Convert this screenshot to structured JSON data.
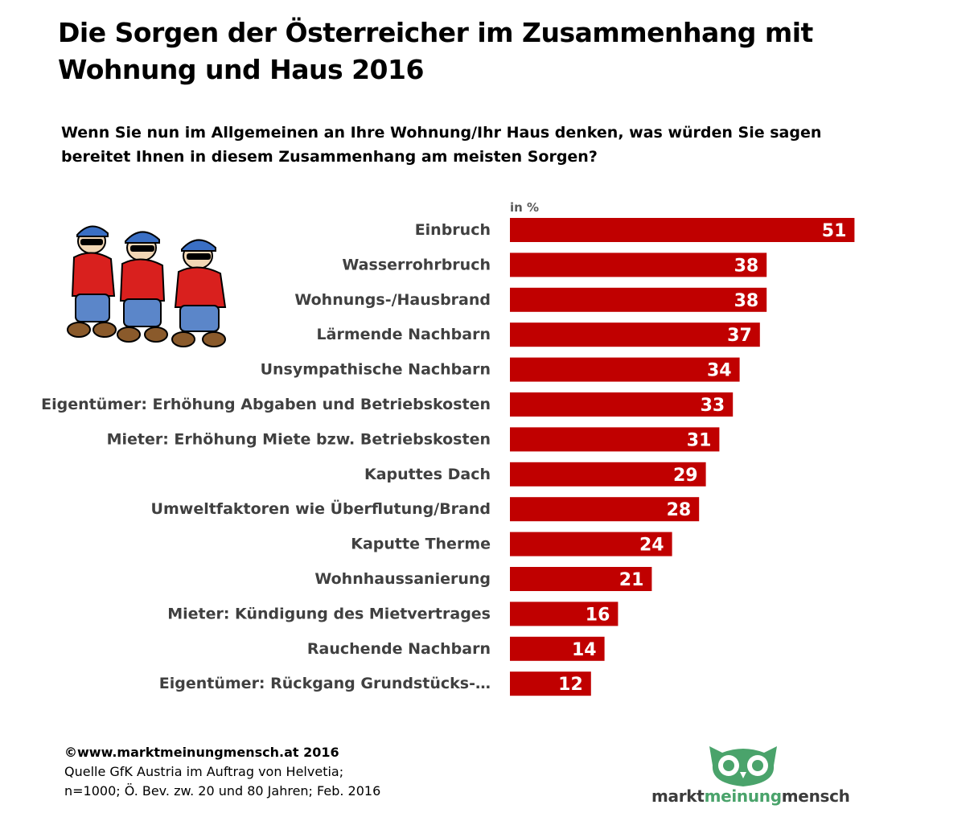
{
  "title": {
    "line1": "Die Sorgen der Österreicher im Zusammenhang mit",
    "line2": "Wohnung und Haus 2016"
  },
  "question": {
    "line1": "Wenn Sie nun im Allgemeinen an Ihre Wohnung/Ihr Haus denken, was würden Sie sagen",
    "line2": "bereitet Ihnen in diesem Zusammenhang  am meisten Sorgen?"
  },
  "unit_label": "in %",
  "chart_data": {
    "type": "bar",
    "orientation": "horizontal",
    "categories": [
      "Einbruch",
      "Wasserrohrbruch",
      "Wohnungs-/Hausbrand",
      "Lärmende Nachbarn",
      "Unsympathische Nachbarn",
      "Eigentümer: Erhöhung Abgaben und Betriebskosten",
      "Mieter: Erhöhung Miete bzw. Betriebskosten",
      "Kaputtes Dach",
      "Umweltfaktoren wie Überflutung/Brand",
      "Kaputte Therme",
      "Wohnhaussanierung",
      "Mieter: Kündigung des Mietvertrages",
      "Rauchende Nachbarn",
      "Eigentümer: Rückgang Grundstücks-…"
    ],
    "values": [
      51,
      38,
      38,
      37,
      34,
      33,
      31,
      29,
      28,
      24,
      21,
      16,
      14,
      12
    ],
    "xlim": [
      0,
      60
    ],
    "grid": false,
    "data_labels": true,
    "bar_color": "#c00000",
    "label_color": "#404040",
    "value_label_color": "#ffffff"
  },
  "footer": {
    "copyright": "©www.marktmeinungmensch.at 2016",
    "source_line1": "Quelle GfK Austria im Auftrag von Helvetia;",
    "source_line2": "n=1000; Ö. Bev. zw. 20 und 80 Jahren; Feb. 2016"
  },
  "logo": {
    "word1": "markt",
    "word2": "meinung",
    "word3": "mensch",
    "color_green": "#4aa36b",
    "color_dark": "#3c3c3c"
  }
}
